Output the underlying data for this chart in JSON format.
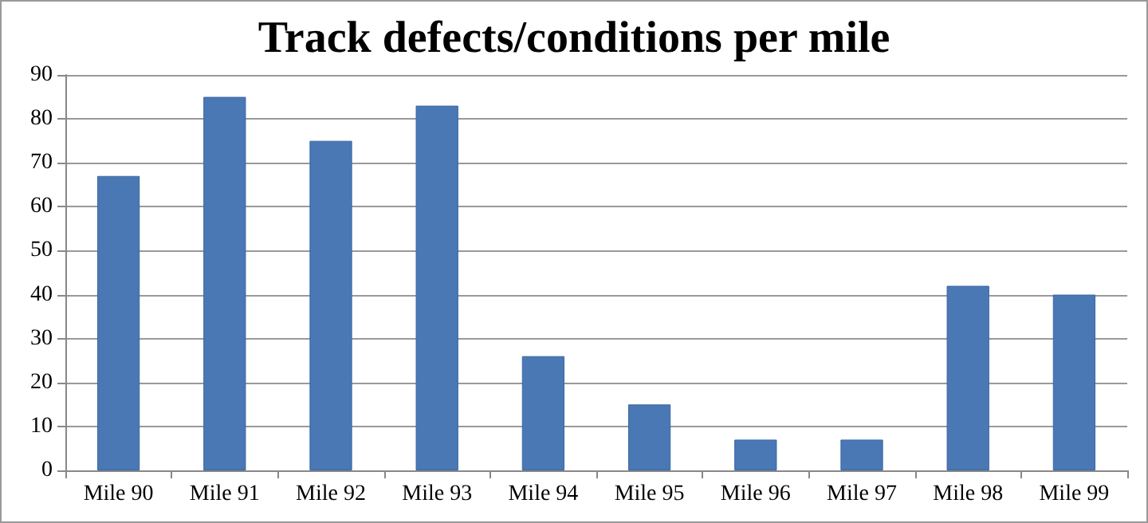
{
  "chart_data": {
    "type": "bar",
    "title": "Track defects/conditions per mile",
    "categories": [
      "Mile 90",
      "Mile 91",
      "Mile 92",
      "Mile 93",
      "Mile 94",
      "Mile 95",
      "Mile 96",
      "Mile 97",
      "Mile 98",
      "Mile 99"
    ],
    "values": [
      67,
      85,
      75,
      83,
      26,
      15,
      7,
      7,
      42,
      40
    ],
    "color": "#4a78b5",
    "ylim": [
      0,
      90
    ],
    "yticks": [
      0,
      10,
      20,
      30,
      40,
      50,
      60,
      70,
      80,
      90
    ],
    "grid": "y"
  }
}
